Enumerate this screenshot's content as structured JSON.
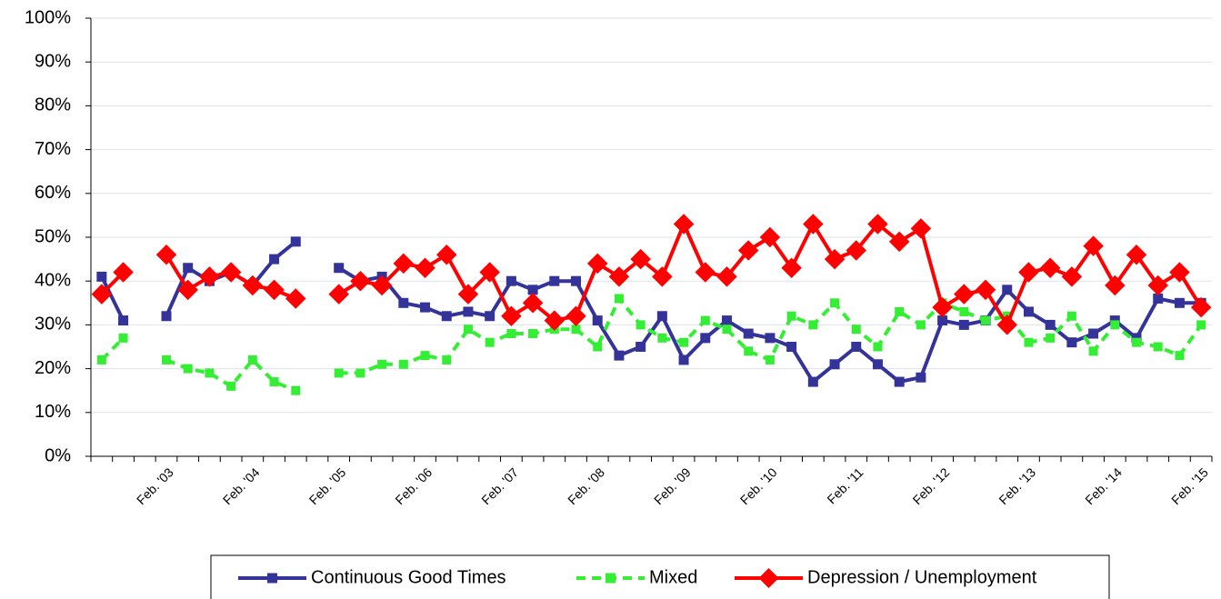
{
  "chart_data": {
    "type": "line",
    "categories": [
      null,
      null,
      null,
      "Feb. '03",
      null,
      null,
      null,
      "Feb. '04",
      null,
      null,
      null,
      "Feb. '05",
      null,
      null,
      null,
      "Feb. '06",
      null,
      null,
      null,
      "Feb. '07",
      null,
      null,
      null,
      "Feb. '08",
      null,
      null,
      null,
      "Feb. '09",
      null,
      null,
      null,
      "Feb. '10",
      null,
      null,
      null,
      "Feb. '11",
      null,
      null,
      null,
      "Feb. '12",
      null,
      null,
      null,
      "Feb. '13",
      null,
      null,
      null,
      "Feb. '14",
      null,
      null,
      null,
      "Feb. '15"
    ],
    "series": [
      {
        "name": "Continuous Good Times",
        "color": "#333399",
        "marker": "square",
        "dashed": false,
        "values": [
          41,
          31,
          null,
          32,
          43,
          40,
          42,
          39,
          45,
          49,
          null,
          43,
          40,
          41,
          35,
          34,
          32,
          33,
          32,
          40,
          38,
          40,
          40,
          31,
          23,
          25,
          32,
          22,
          27,
          31,
          28,
          27,
          25,
          17,
          21,
          25,
          21,
          17,
          18,
          31,
          30,
          31,
          38,
          33,
          30,
          26,
          28,
          31,
          27,
          36,
          35,
          35
        ]
      },
      {
        "name": "Mixed",
        "color": "#33ee33",
        "marker": "square",
        "dashed": true,
        "values": [
          22,
          27,
          null,
          22,
          20,
          19,
          16,
          22,
          17,
          15,
          null,
          19,
          19,
          21,
          21,
          23,
          22,
          29,
          26,
          28,
          28,
          29,
          29,
          25,
          36,
          30,
          27,
          26,
          31,
          29,
          24,
          22,
          32,
          30,
          35,
          29,
          25,
          33,
          30,
          35,
          33,
          31,
          32,
          26,
          27,
          32,
          24,
          30,
          26,
          25,
          23,
          30
        ]
      },
      {
        "name": "Depression / Unemployment",
        "color": "#ff0000",
        "marker": "diamond",
        "dashed": false,
        "values": [
          37,
          42,
          null,
          46,
          38,
          41,
          42,
          39,
          38,
          36,
          null,
          37,
          40,
          39,
          44,
          43,
          46,
          37,
          42,
          32,
          35,
          31,
          32,
          44,
          41,
          45,
          41,
          53,
          42,
          41,
          47,
          50,
          43,
          53,
          45,
          47,
          53,
          49,
          52,
          34,
          37,
          38,
          30,
          42,
          43,
          41,
          48,
          39,
          46,
          39,
          42,
          34
        ]
      }
    ],
    "ylim": [
      0,
      100
    ],
    "yticks": [
      {
        "value": 0,
        "label": "0%"
      },
      {
        "value": 10,
        "label": "10%"
      },
      {
        "value": 20,
        "label": "20%"
      },
      {
        "value": 30,
        "label": "30%"
      },
      {
        "value": 40,
        "label": "40%"
      },
      {
        "value": 50,
        "label": "50%"
      },
      {
        "value": 60,
        "label": "60%"
      },
      {
        "value": 70,
        "label": "70%"
      },
      {
        "value": 80,
        "label": "80%"
      },
      {
        "value": 90,
        "label": "90%"
      },
      {
        "value": 100,
        "label": "100%"
      }
    ],
    "grid": true,
    "legend": "bottom"
  }
}
